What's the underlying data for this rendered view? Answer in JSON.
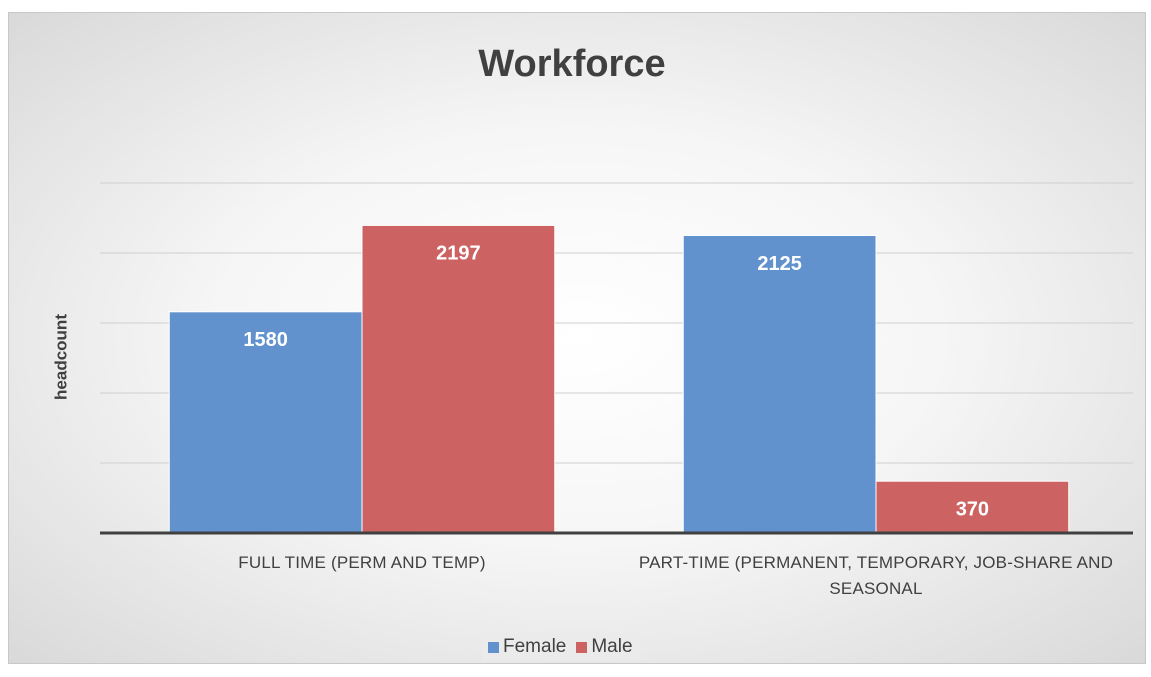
{
  "chart_data": {
    "type": "bar",
    "title": "Workforce",
    "y_label": "headcount",
    "categories": [
      "FULL TIME (PERM AND TEMP)",
      "PART-TIME (PERMANENT, TEMPORARY, JOB-SHARE AND SEASONAL"
    ],
    "series": [
      {
        "name": "Female",
        "color": "#6192cd",
        "values": [
          1580,
          2125
        ]
      },
      {
        "name": "Male",
        "color": "#cc6262",
        "values": [
          2197,
          370
        ]
      }
    ],
    "ylim": [
      0,
      2500
    ],
    "yticks": [
      0,
      500,
      1000,
      1500,
      2000,
      2500
    ],
    "grid": true,
    "legend": "bottom"
  }
}
